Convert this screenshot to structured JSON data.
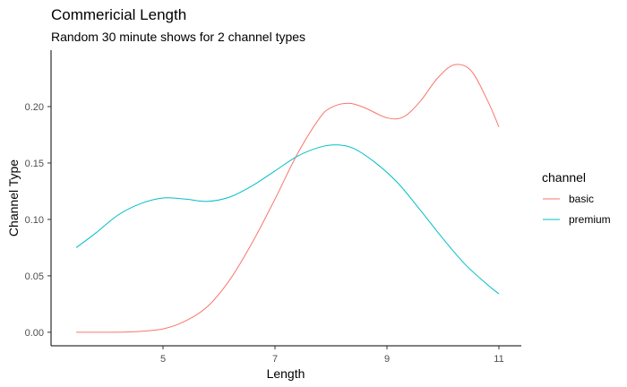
{
  "chart_data": {
    "type": "line",
    "title": "Commericial Length",
    "subtitle": "Random 30 minute shows for 2 channel types",
    "xlabel": "Length",
    "ylabel": "Channel Type",
    "xlim": [
      3.0,
      11.4
    ],
    "ylim": [
      -0.012,
      0.25
    ],
    "x_ticks": [
      5,
      7,
      9,
      11
    ],
    "y_ticks": [
      0.0,
      0.05,
      0.1,
      0.15,
      0.2
    ],
    "y_tick_labels": [
      "0.00",
      "0.05",
      "0.10",
      "0.15",
      "0.20"
    ],
    "grid": false,
    "legend": {
      "title": "channel",
      "position": "right"
    },
    "series": [
      {
        "name": "basic",
        "color": "#F8766D",
        "x": [
          3.45,
          4.0,
          4.5,
          5.0,
          5.4,
          5.8,
          6.2,
          6.6,
          7.0,
          7.4,
          7.8,
          8.0,
          8.3,
          8.6,
          9.0,
          9.3,
          9.6,
          9.9,
          10.2,
          10.5,
          10.8,
          11.0
        ],
        "y": [
          0.0,
          0.0,
          0.0005,
          0.003,
          0.01,
          0.023,
          0.047,
          0.08,
          0.118,
          0.158,
          0.19,
          0.199,
          0.203,
          0.199,
          0.19,
          0.191,
          0.205,
          0.225,
          0.237,
          0.232,
          0.205,
          0.182
        ]
      },
      {
        "name": "premium",
        "color": "#00BFC4",
        "x": [
          3.45,
          3.8,
          4.2,
          4.6,
          5.0,
          5.4,
          5.8,
          6.2,
          6.6,
          7.0,
          7.4,
          7.8,
          8.1,
          8.4,
          8.8,
          9.2,
          9.6,
          10.0,
          10.4,
          10.8,
          11.0
        ],
        "y": [
          0.075,
          0.088,
          0.104,
          0.114,
          0.119,
          0.118,
          0.116,
          0.12,
          0.13,
          0.143,
          0.156,
          0.164,
          0.166,
          0.163,
          0.15,
          0.132,
          0.108,
          0.083,
          0.06,
          0.042,
          0.034
        ]
      }
    ]
  }
}
